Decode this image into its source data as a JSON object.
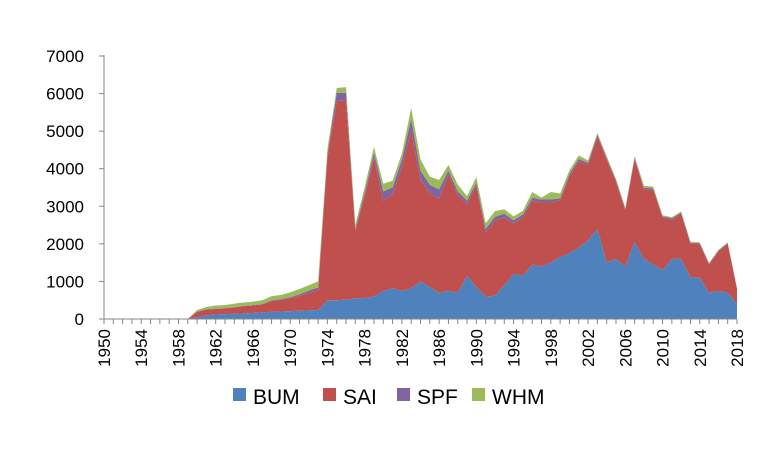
{
  "chart_data": {
    "type": "area",
    "stacked": true,
    "title": "",
    "xlabel": "",
    "ylabel": "",
    "ylim": [
      0,
      7000
    ],
    "xlim": [
      1950,
      2018
    ],
    "yticks": [
      0,
      1000,
      2000,
      3000,
      4000,
      5000,
      6000,
      7000
    ],
    "y_tick_labels": [
      "0",
      "1000",
      "2000",
      "3000",
      "4000",
      "5000",
      "6000",
      "7000"
    ],
    "xticks": [
      1950,
      1954,
      1958,
      1962,
      1966,
      1970,
      1974,
      1978,
      1982,
      1986,
      1990,
      1994,
      1998,
      2002,
      2006,
      2010,
      2014,
      2018
    ],
    "x_tick_labels": [
      "1950",
      "1954",
      "1958",
      "1962",
      "1966",
      "1970",
      "1974",
      "1978",
      "1982",
      "1986",
      "1990",
      "1994",
      "1998",
      "2002",
      "2006",
      "2010",
      "2014",
      "2018"
    ],
    "grid": false,
    "legend_position": "bottom",
    "x": [
      1950,
      1951,
      1952,
      1953,
      1954,
      1955,
      1956,
      1957,
      1958,
      1959,
      1960,
      1961,
      1962,
      1963,
      1964,
      1965,
      1966,
      1967,
      1968,
      1969,
      1970,
      1971,
      1972,
      1973,
      1974,
      1975,
      1976,
      1977,
      1978,
      1979,
      1980,
      1981,
      1982,
      1983,
      1984,
      1985,
      1986,
      1987,
      1988,
      1989,
      1990,
      1991,
      1992,
      1993,
      1994,
      1995,
      1996,
      1997,
      1998,
      1999,
      2000,
      2001,
      2002,
      2003,
      2004,
      2005,
      2006,
      2007,
      2008,
      2009,
      2010,
      2011,
      2012,
      2013,
      2014,
      2015,
      2016,
      2017,
      2018
    ],
    "series": [
      {
        "name": "BUM",
        "color": "#4f81bd",
        "values": [
          0,
          0,
          0,
          0,
          0,
          0,
          0,
          0,
          0,
          0,
          50,
          100,
          120,
          130,
          140,
          150,
          160,
          180,
          190,
          200,
          210,
          220,
          230,
          240,
          500,
          500,
          520,
          550,
          560,
          600,
          750,
          820,
          750,
          820,
          1000,
          850,
          700,
          750,
          700,
          1150,
          850,
          600,
          620,
          900,
          1200,
          1150,
          1450,
          1400,
          1500,
          1650,
          1750,
          1900,
          2100,
          2400,
          1500,
          1600,
          1400,
          2050,
          1600,
          1450,
          1300,
          1600,
          1600,
          1100,
          1100,
          700,
          750,
          700,
          400
        ]
      },
      {
        "name": "SAI",
        "color": "#c0504d",
        "values": [
          0,
          0,
          0,
          0,
          0,
          0,
          0,
          0,
          0,
          0,
          140,
          150,
          150,
          150,
          170,
          190,
          200,
          210,
          290,
          310,
          340,
          400,
          470,
          520,
          3800,
          5300,
          5300,
          1800,
          2700,
          3700,
          2400,
          2500,
          3300,
          4200,
          2700,
          2500,
          2500,
          3100,
          2600,
          1900,
          2700,
          1700,
          2000,
          1800,
          1350,
          1550,
          1700,
          1700,
          1600,
          1500,
          2050,
          2300,
          2000,
          2450,
          2750,
          2050,
          1500,
          2200,
          1850,
          2000,
          1400,
          1050,
          1200,
          900,
          900,
          750,
          1050,
          1300,
          400
        ]
      },
      {
        "name": "SPF",
        "color": "#8064a2",
        "values": [
          0,
          0,
          0,
          0,
          0,
          0,
          0,
          0,
          0,
          0,
          10,
          10,
          10,
          10,
          10,
          10,
          10,
          10,
          20,
          20,
          30,
          40,
          60,
          80,
          100,
          220,
          200,
          60,
          100,
          130,
          250,
          180,
          200,
          300,
          250,
          220,
          250,
          100,
          100,
          100,
          80,
          100,
          100,
          100,
          80,
          80,
          80,
          80,
          80,
          60,
          60,
          60,
          60,
          60,
          40,
          40,
          30,
          40,
          40,
          30,
          30,
          30,
          30,
          30,
          20,
          20,
          20,
          20,
          10
        ]
      },
      {
        "name": "WHM",
        "color": "#9bbb59",
        "values": [
          0,
          0,
          0,
          0,
          0,
          0,
          0,
          0,
          0,
          0,
          40,
          60,
          80,
          80,
          90,
          90,
          90,
          100,
          110,
          110,
          130,
          140,
          140,
          160,
          120,
          130,
          150,
          100,
          150,
          150,
          200,
          180,
          150,
          300,
          300,
          220,
          250,
          150,
          180,
          120,
          150,
          150,
          150,
          120,
          100,
          100,
          150,
          50,
          200,
          130,
          100,
          90,
          60,
          40,
          40,
          40,
          30,
          50,
          60,
          40,
          30,
          30,
          30,
          30,
          20,
          20,
          20,
          20,
          20
        ]
      }
    ]
  }
}
